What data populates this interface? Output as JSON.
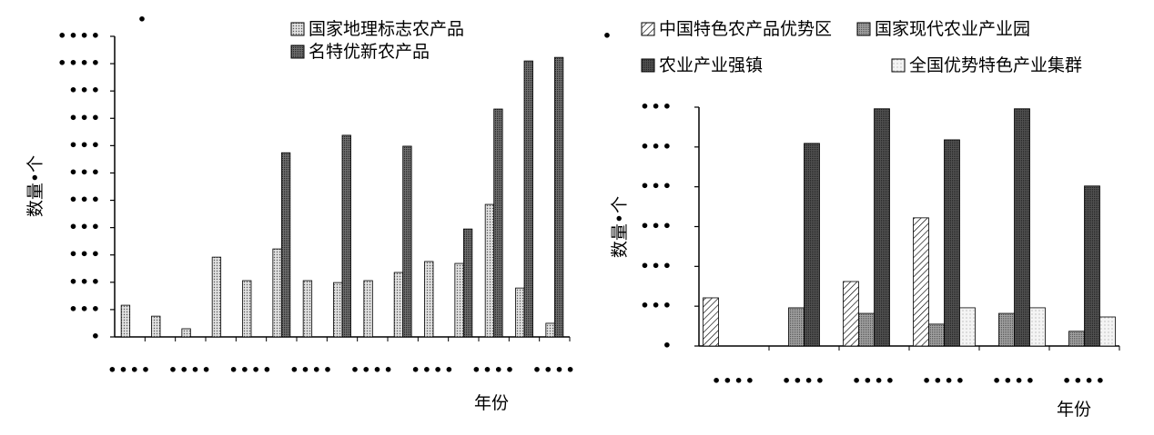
{
  "chart_data": [
    {
      "type": "bar",
      "xlabel": "年份",
      "ylabel": "数量•个",
      "annotations": [
        "•"
      ],
      "categories": [
        "••••",
        null,
        "••••",
        null,
        "••••",
        null,
        "••••",
        null,
        "••••",
        null,
        "••••",
        null,
        "••••",
        null,
        "••••"
      ],
      "series": [
        {
          "name": "国家地理标志农产品",
          "color": "#e0e0e0",
          "values": [
            1.16,
            0.76,
            0.3,
            2.92,
            2.06,
            3.22,
            2.06,
            1.99,
            2.06,
            2.36,
            2.76,
            2.69,
            4.85,
            1.79,
            0.5
          ]
        },
        {
          "name": "名特优新农产品",
          "color": "#6e6e6e",
          "values": [
            0,
            0,
            0,
            0,
            0,
            6.74,
            0,
            7.38,
            0,
            6.98,
            0,
            3.95,
            8.34,
            10.1,
            10.23
          ]
        }
      ],
      "ylim": [
        0,
        11
      ],
      "yticks": [
        {
          "value": 0,
          "label": "•"
        },
        {
          "value": 1,
          "label": "•••"
        },
        {
          "value": 2,
          "label": "•••"
        },
        {
          "value": 3,
          "label": "•••"
        },
        {
          "value": 4,
          "label": "•••"
        },
        {
          "value": 5,
          "label": "•••"
        },
        {
          "value": 6,
          "label": "•••"
        },
        {
          "value": 7,
          "label": "•••"
        },
        {
          "value": 8,
          "label": "•••"
        },
        {
          "value": 9,
          "label": "•••"
        },
        {
          "value": 10,
          "label": "••••"
        },
        {
          "value": 11,
          "label": "••••"
        }
      ],
      "legend": "top-right"
    },
    {
      "type": "bar",
      "xlabel": "年份",
      "ylabel": "数量•个",
      "annotations": [
        "•"
      ],
      "categories": [
        "••••",
        "••••",
        "••••",
        "••••",
        "••••",
        "••••"
      ],
      "series": [
        {
          "name": "中国特色农产品优势区",
          "color": "#ffffff",
          "values": [
            1.21,
            0,
            1.62,
            3.22,
            0,
            0
          ]
        },
        {
          "name": "国家现代农业产业园",
          "color": "#a0a0a0",
          "values": [
            0,
            0.96,
            0.82,
            0.55,
            0.82,
            0.37
          ]
        },
        {
          "name": "农业产业强镇",
          "color": "#505050",
          "values": [
            0,
            5.09,
            5.96,
            5.18,
            5.96,
            4.02
          ]
        },
        {
          "name": "全国优势特色产业集群",
          "color": "#f4f4f4",
          "values": [
            0,
            0,
            0,
            0.96,
            0.96,
            0.73
          ]
        }
      ],
      "ylim": [
        0,
        6
      ],
      "yticks": [
        {
          "value": 0,
          "label": "•"
        },
        {
          "value": 1,
          "label": "•••"
        },
        {
          "value": 2,
          "label": "•••"
        },
        {
          "value": 3,
          "label": "•••"
        },
        {
          "value": 4,
          "label": "•••"
        },
        {
          "value": 5,
          "label": "•••"
        },
        {
          "value": 6,
          "label": "•••"
        }
      ],
      "legend": "top"
    }
  ]
}
